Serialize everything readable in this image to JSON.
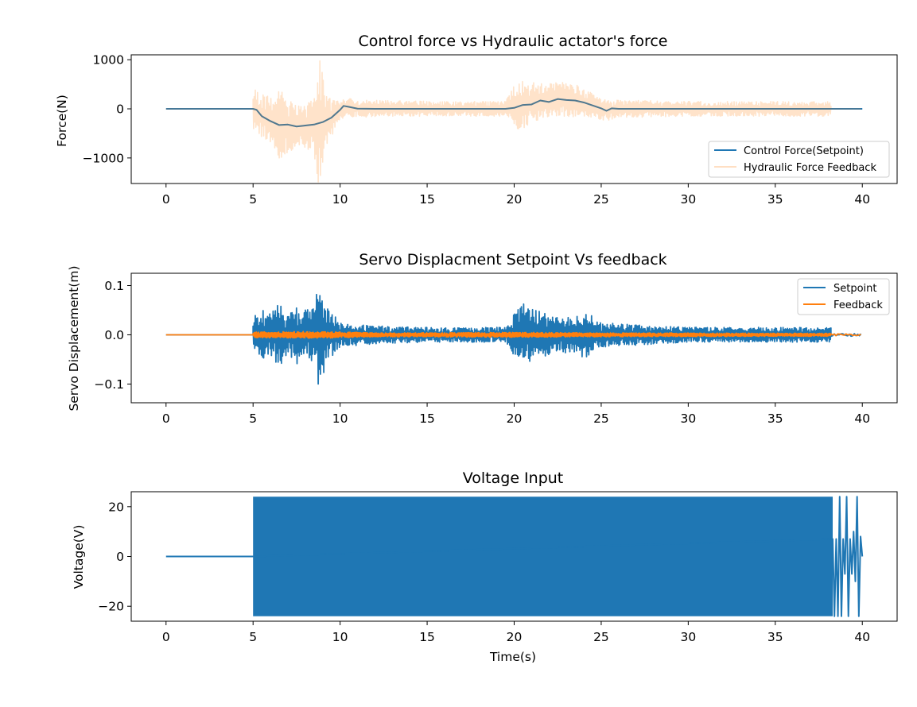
{
  "chart_data": [
    {
      "type": "line",
      "title": "Control force vs Hydraulic actator's force",
      "xlabel": "",
      "ylabel": "Force(N)",
      "xlim": [
        -2,
        42
      ],
      "ylim": [
        -1520,
        1100
      ],
      "xticks": [
        0,
        5,
        10,
        15,
        20,
        25,
        30,
        35,
        40
      ],
      "xtick_labels": [
        "0",
        "5",
        "10",
        "15",
        "20",
        "25",
        "30",
        "35",
        "40"
      ],
      "yticks": [
        1000,
        0,
        -1000
      ],
      "ytick_labels": [
        "1000",
        "0",
        "−1000"
      ],
      "grid": false,
      "legend_position": "lower-right",
      "series": [
        {
          "name": "Control Force(Setpoint)",
          "color": "#1f77b4",
          "style": "smooth",
          "points": [
            [
              0,
              0
            ],
            [
              5,
              0
            ],
            [
              5.2,
              -20
            ],
            [
              5.5,
              -150
            ],
            [
              6,
              -250
            ],
            [
              6.5,
              -330
            ],
            [
              7,
              -320
            ],
            [
              7.5,
              -360
            ],
            [
              8,
              -340
            ],
            [
              8.5,
              -320
            ],
            [
              9,
              -270
            ],
            [
              9.5,
              -180
            ],
            [
              10,
              -20
            ],
            [
              10.2,
              60
            ],
            [
              10.5,
              40
            ],
            [
              11,
              5
            ],
            [
              12,
              0
            ],
            [
              19.5,
              0
            ],
            [
              20,
              20
            ],
            [
              20.5,
              80
            ],
            [
              21,
              90
            ],
            [
              21.5,
              170
            ],
            [
              22,
              140
            ],
            [
              22.5,
              200
            ],
            [
              23,
              180
            ],
            [
              23.5,
              170
            ],
            [
              24,
              130
            ],
            [
              24.5,
              70
            ],
            [
              25,
              10
            ],
            [
              25.3,
              -40
            ],
            [
              25.6,
              10
            ],
            [
              26,
              0
            ],
            [
              40,
              0
            ]
          ]
        },
        {
          "name": "Hydraulic Force Feedback",
          "color": "#ff7f0e",
          "opacity": 0.22,
          "style": "noise",
          "range": [
            5,
            38.2
          ],
          "envelope": [
            [
              5,
              450
            ],
            [
              5.5,
              450
            ],
            [
              6,
              500
            ],
            [
              6.5,
              700
            ],
            [
              7,
              600
            ],
            [
              7.5,
              400
            ],
            [
              8,
              450
            ],
            [
              8.5,
              600
            ],
            [
              8.8,
              1400
            ],
            [
              9.2,
              500
            ],
            [
              10,
              200
            ],
            [
              12,
              170
            ],
            [
              15,
              150
            ],
            [
              19.5,
              150
            ],
            [
              20,
              450
            ],
            [
              20.5,
              500
            ],
            [
              21,
              400
            ],
            [
              21.5,
              380
            ],
            [
              22,
              350
            ],
            [
              23,
              350
            ],
            [
              23.5,
              330
            ],
            [
              24,
              300
            ],
            [
              25,
              220
            ],
            [
              26,
              180
            ],
            [
              30,
              150
            ],
            [
              35,
              150
            ],
            [
              38.2,
              150
            ]
          ],
          "center": [
            [
              5,
              0
            ],
            [
              5.2,
              -20
            ],
            [
              5.5,
              -150
            ],
            [
              6,
              -250
            ],
            [
              6.5,
              -330
            ],
            [
              7,
              -320
            ],
            [
              7.5,
              -360
            ],
            [
              8,
              -340
            ],
            [
              8.5,
              -320
            ],
            [
              9,
              -270
            ],
            [
              9.5,
              -180
            ],
            [
              10,
              -20
            ],
            [
              10.5,
              40
            ],
            [
              11,
              5
            ],
            [
              19.5,
              0
            ],
            [
              20.5,
              80
            ],
            [
              21.5,
              170
            ],
            [
              22.5,
              200
            ],
            [
              23.5,
              170
            ],
            [
              24.5,
              70
            ],
            [
              25.3,
              -40
            ],
            [
              26,
              0
            ],
            [
              40,
              0
            ]
          ]
        }
      ]
    },
    {
      "type": "line",
      "title": "Servo Displacment Setpoint Vs feedback",
      "xlabel": "",
      "ylabel": "Servo Displacement(m)",
      "xlim": [
        -2,
        42
      ],
      "ylim": [
        -0.138,
        0.125
      ],
      "xticks": [
        0,
        5,
        10,
        15,
        20,
        25,
        30,
        35,
        40
      ],
      "xtick_labels": [
        "0",
        "5",
        "10",
        "15",
        "20",
        "25",
        "30",
        "35",
        "40"
      ],
      "yticks": [
        0.1,
        0,
        -0.1
      ],
      "ytick_labels": [
        "0.1",
        "0.0",
        "−0.1"
      ],
      "grid": false,
      "legend_position": "upper-right",
      "series": [
        {
          "name": "Setpoint",
          "color": "#1f77b4",
          "style": "noise",
          "range": [
            5,
            38.2
          ],
          "pre_value": 0,
          "post_amplitude": 0.003,
          "envelope": [
            [
              5,
              0.04
            ],
            [
              5.5,
              0.05
            ],
            [
              6,
              0.045
            ],
            [
              6.5,
              0.07
            ],
            [
              7,
              0.04
            ],
            [
              7.5,
              0.06
            ],
            [
              8,
              0.05
            ],
            [
              8.5,
              0.06
            ],
            [
              8.8,
              0.115
            ],
            [
              9.2,
              0.06
            ],
            [
              10,
              0.025
            ],
            [
              12,
              0.018
            ],
            [
              15,
              0.015
            ],
            [
              19.5,
              0.015
            ],
            [
              20,
              0.045
            ],
            [
              20.5,
              0.065
            ],
            [
              21,
              0.055
            ],
            [
              22,
              0.04
            ],
            [
              23.5,
              0.035
            ],
            [
              24,
              0.05
            ],
            [
              25,
              0.025
            ],
            [
              30,
              0.015
            ],
            [
              35,
              0.015
            ],
            [
              38.2,
              0.015
            ]
          ],
          "center": [
            [
              0,
              0
            ],
            [
              40,
              0
            ]
          ]
        },
        {
          "name": "Feedback",
          "color": "#ff7f0e",
          "style": "noise",
          "range": [
            5,
            38.2
          ],
          "pre_value": 0,
          "post_amplitude": 0.002,
          "envelope": [
            [
              5,
              0.006
            ],
            [
              9,
              0.007
            ],
            [
              12,
              0.004
            ],
            [
              20,
              0.005
            ],
            [
              25,
              0.004
            ],
            [
              38.2,
              0.003
            ]
          ],
          "center": [
            [
              0,
              0
            ],
            [
              40,
              0
            ]
          ]
        }
      ]
    },
    {
      "type": "line",
      "title": "Voltage Input",
      "xlabel": "Time(s)",
      "ylabel": "Voltage(V)",
      "xlim": [
        -2,
        42
      ],
      "ylim": [
        -26,
        26
      ],
      "xticks": [
        0,
        5,
        10,
        15,
        20,
        25,
        30,
        35,
        40
      ],
      "xtick_labels": [
        "0",
        "5",
        "10",
        "15",
        "20",
        "25",
        "30",
        "35",
        "40"
      ],
      "yticks": [
        20,
        0,
        -20
      ],
      "ytick_labels": [
        "20",
        "0",
        "−20"
      ],
      "grid": false,
      "series": [
        {
          "name": "",
          "color": "#1f77b4",
          "style": "saturated",
          "pre_value": 0,
          "band_range": [
            5,
            38.3
          ],
          "band_limit": 24,
          "tail": [
            [
              38.3,
              7
            ],
            [
              38.4,
              -24
            ],
            [
              38.5,
              7
            ],
            [
              38.6,
              -24
            ],
            [
              38.7,
              24
            ],
            [
              38.8,
              -24
            ],
            [
              38.9,
              7
            ],
            [
              39,
              -7
            ],
            [
              39.1,
              24
            ],
            [
              39.2,
              -24
            ],
            [
              39.3,
              7
            ],
            [
              39.4,
              -7
            ],
            [
              39.5,
              10
            ],
            [
              39.6,
              -10
            ],
            [
              39.7,
              24
            ],
            [
              39.8,
              -24
            ],
            [
              39.9,
              8
            ],
            [
              40,
              0
            ]
          ]
        }
      ]
    }
  ]
}
